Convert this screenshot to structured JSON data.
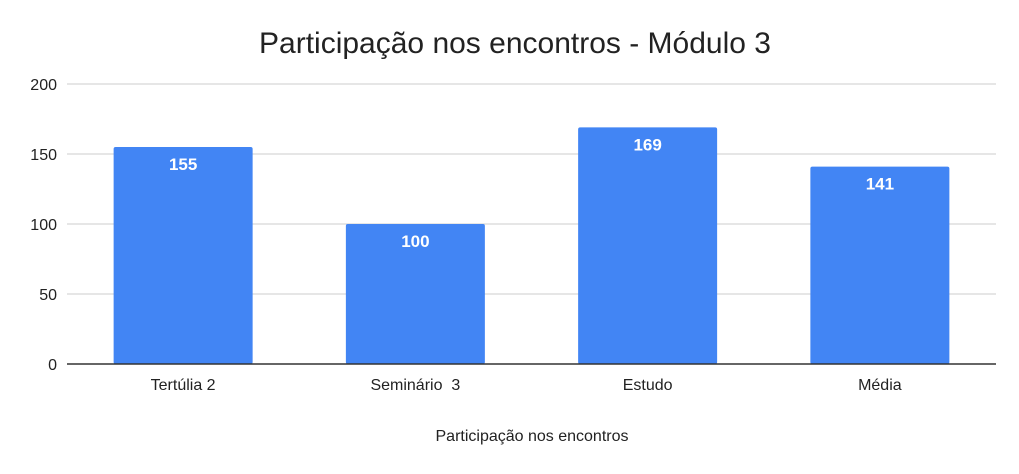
{
  "chart_data": {
    "type": "bar",
    "title": "Participação nos encontros - Módulo 3",
    "xlabel": "Participação nos encontros",
    "ylabel": "",
    "categories": [
      "Tertúlia 2",
      "Seminário  3",
      "Estudo",
      "Média"
    ],
    "values": [
      155,
      100,
      169,
      141
    ],
    "ylim": [
      0,
      200
    ],
    "yticks": [
      0,
      50,
      100,
      150,
      200
    ],
    "grid": true,
    "legend": "none",
    "data_labels": true,
    "colors": {
      "bar": "#4285f4",
      "gridline": "#cccccc",
      "axis": "#333333",
      "text": "#222222",
      "data_label": "#ffffff"
    }
  }
}
